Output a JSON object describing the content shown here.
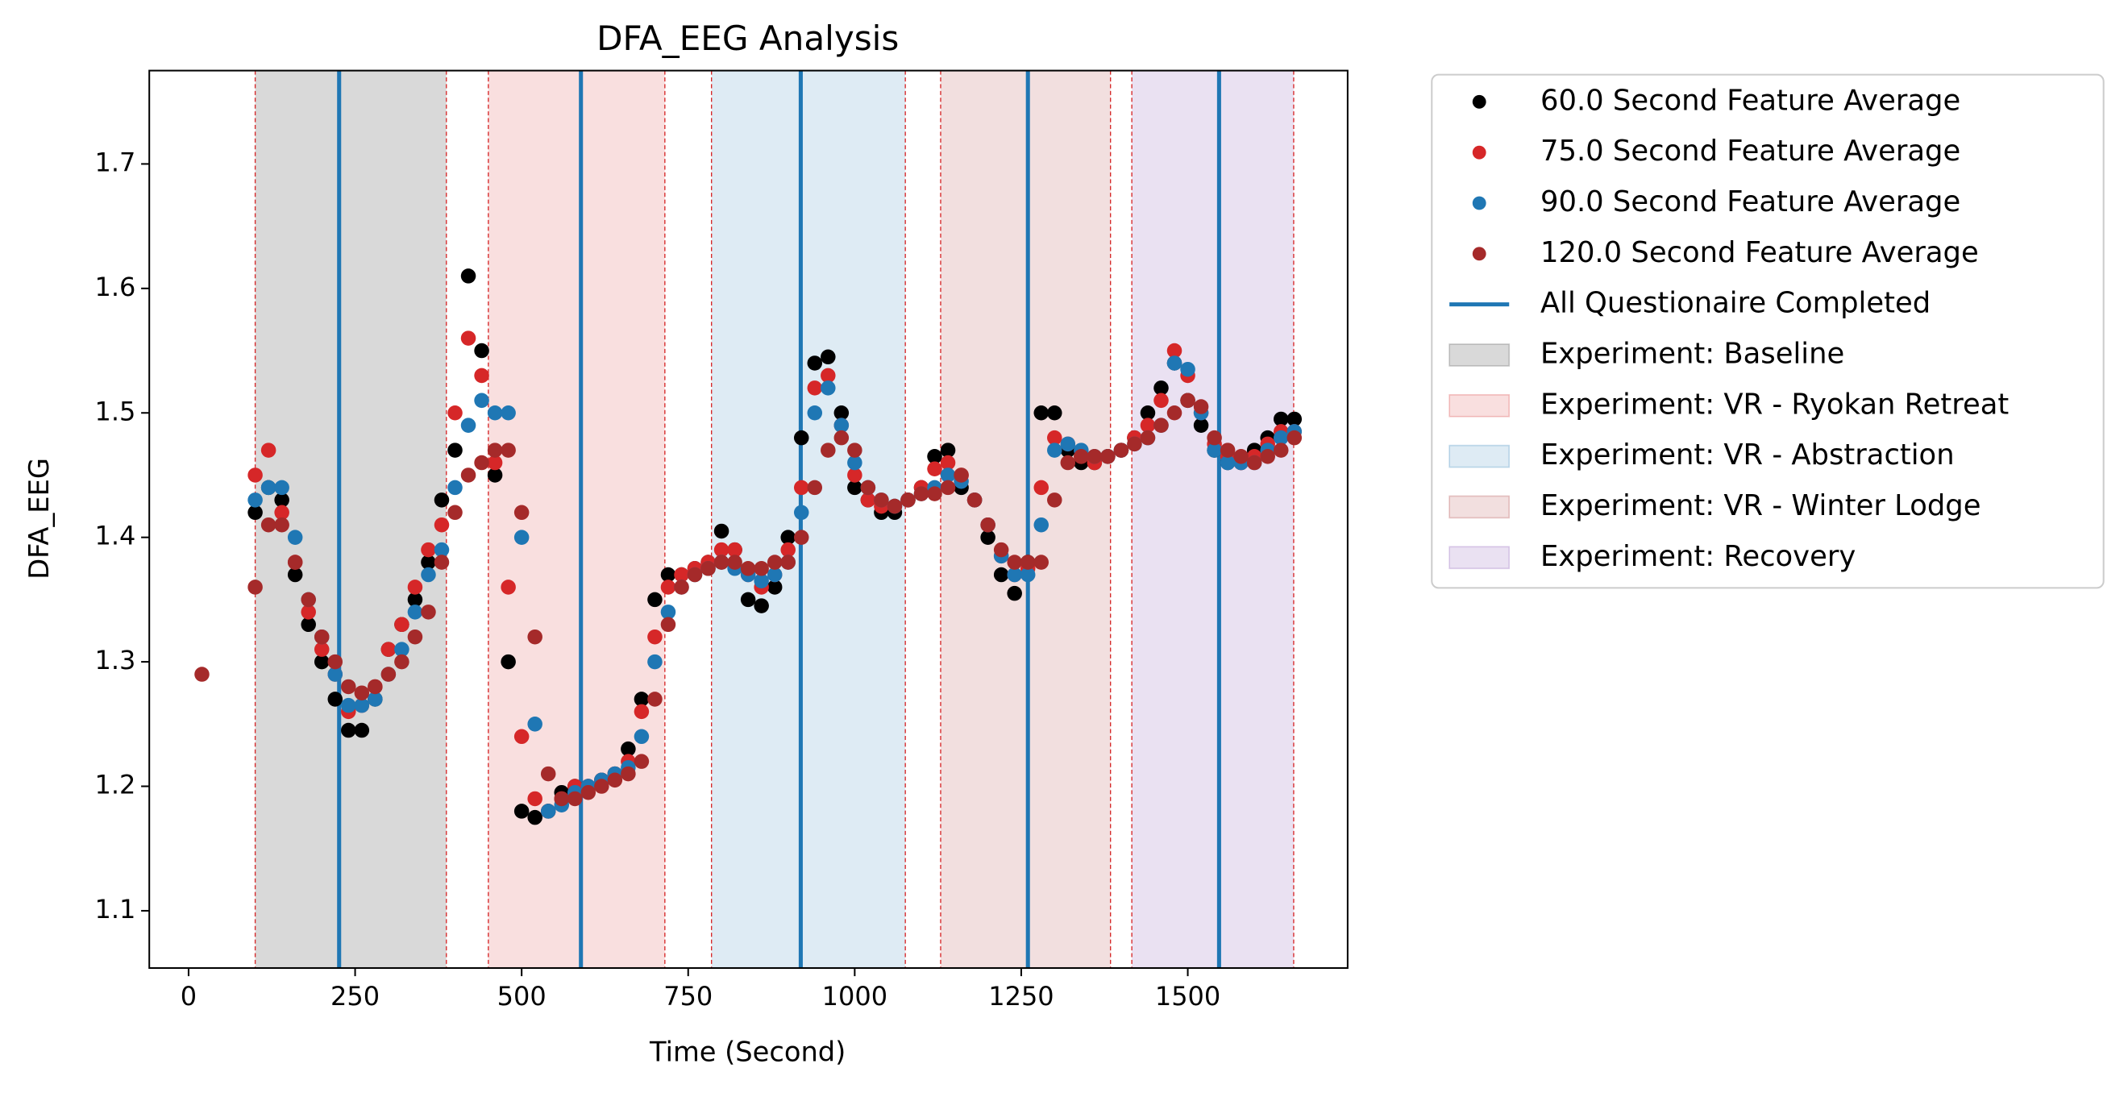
{
  "chart_data": {
    "type": "scatter",
    "title": "DFA_EEG Analysis",
    "x_label": "Time (Second)",
    "y_label": "DFA_EEG",
    "xlim": [
      -59,
      1740
    ],
    "ylim": [
      1.054,
      1.775
    ],
    "xticks": [
      0,
      250,
      500,
      750,
      1000,
      1250,
      1500
    ],
    "yticks": [
      1.1,
      1.2,
      1.3,
      1.4,
      1.5,
      1.6,
      1.7
    ],
    "x": [
      20,
      40,
      60,
      80,
      100,
      120,
      140,
      160,
      180,
      200,
      220,
      240,
      260,
      280,
      300,
      320,
      340,
      360,
      380,
      400,
      420,
      440,
      460,
      480,
      500,
      520,
      540,
      560,
      580,
      600,
      620,
      640,
      660,
      680,
      700,
      720,
      740,
      760,
      780,
      800,
      820,
      840,
      860,
      880,
      900,
      920,
      940,
      960,
      980,
      1000,
      1020,
      1040,
      1060,
      1080,
      1100,
      1120,
      1140,
      1160,
      1180,
      1200,
      1220,
      1240,
      1260,
      1280,
      1300,
      1320,
      1340,
      1360,
      1380,
      1400,
      1420,
      1440,
      1460,
      1480,
      1500,
      1520,
      1540,
      1560,
      1580,
      1600,
      1620,
      1640,
      1660
    ],
    "series": [
      {
        "name": "60.0 Second Feature Average",
        "color": "#000000",
        "values": [
          null,
          null,
          null,
          null,
          1.42,
          1.44,
          1.43,
          1.37,
          1.33,
          1.3,
          1.27,
          1.245,
          1.245,
          1.27,
          1.31,
          1.33,
          1.35,
          1.38,
          1.43,
          1.47,
          1.61,
          1.55,
          1.45,
          1.3,
          1.18,
          1.175,
          1.18,
          1.195,
          1.2,
          1.2,
          1.205,
          1.21,
          1.23,
          1.27,
          1.35,
          1.37,
          1.37,
          1.375,
          1.38,
          1.405,
          1.39,
          1.35,
          1.345,
          1.36,
          1.4,
          1.48,
          1.54,
          1.545,
          1.5,
          1.44,
          1.43,
          1.42,
          1.42,
          1.43,
          1.44,
          1.465,
          1.47,
          1.44,
          1.43,
          1.4,
          1.37,
          1.355,
          1.38,
          1.5,
          1.5,
          1.47,
          1.46,
          1.46,
          1.465,
          1.47,
          1.48,
          1.5,
          1.52,
          1.54,
          1.51,
          1.49,
          1.47,
          1.46,
          1.46,
          1.47,
          1.48,
          1.495,
          1.495
        ]
      },
      {
        "name": "75.0 Second Feature Average",
        "color": "#d62728",
        "values": [
          null,
          null,
          null,
          null,
          1.45,
          1.47,
          1.42,
          1.38,
          1.34,
          1.31,
          1.29,
          1.26,
          1.265,
          1.28,
          1.31,
          1.33,
          1.36,
          1.39,
          1.41,
          1.5,
          1.56,
          1.53,
          1.46,
          1.36,
          1.24,
          1.19,
          1.18,
          1.19,
          1.2,
          1.2,
          1.205,
          1.21,
          1.22,
          1.26,
          1.32,
          1.36,
          1.37,
          1.375,
          1.38,
          1.39,
          1.39,
          1.37,
          1.36,
          1.37,
          1.39,
          1.44,
          1.52,
          1.53,
          1.49,
          1.45,
          1.43,
          1.425,
          1.425,
          1.43,
          1.44,
          1.455,
          1.46,
          1.45,
          1.43,
          1.41,
          1.385,
          1.37,
          1.375,
          1.44,
          1.48,
          1.475,
          1.465,
          1.46,
          1.465,
          1.47,
          1.48,
          1.49,
          1.51,
          1.55,
          1.53,
          1.5,
          1.475,
          1.465,
          1.46,
          1.465,
          1.475,
          1.485,
          1.485
        ]
      },
      {
        "name": "90.0 Second Feature Average",
        "color": "#1f77b4",
        "values": [
          null,
          null,
          null,
          null,
          1.43,
          1.44,
          1.44,
          1.4,
          1.35,
          1.32,
          1.29,
          1.265,
          1.265,
          1.27,
          1.29,
          1.31,
          1.34,
          1.37,
          1.39,
          1.44,
          1.49,
          1.51,
          1.5,
          1.5,
          1.4,
          1.25,
          1.18,
          1.185,
          1.195,
          1.2,
          1.205,
          1.21,
          1.215,
          1.24,
          1.3,
          1.34,
          1.36,
          1.37,
          1.375,
          1.38,
          1.375,
          1.37,
          1.365,
          1.37,
          1.38,
          1.42,
          1.5,
          1.52,
          1.49,
          1.46,
          1.44,
          1.43,
          1.425,
          1.43,
          1.435,
          1.44,
          1.45,
          1.445,
          1.43,
          1.41,
          1.385,
          1.37,
          1.37,
          1.41,
          1.47,
          1.475,
          1.47,
          1.465,
          1.465,
          1.47,
          1.475,
          1.48,
          1.49,
          1.54,
          1.535,
          1.5,
          1.47,
          1.46,
          1.46,
          1.46,
          1.47,
          1.48,
          1.485
        ]
      },
      {
        "name": "120.0 Second Feature Average",
        "color": "#a52a2a",
        "values": [
          1.29,
          null,
          null,
          null,
          1.36,
          1.41,
          1.41,
          1.38,
          1.35,
          1.32,
          1.3,
          1.28,
          1.275,
          1.28,
          1.29,
          1.3,
          1.32,
          1.34,
          1.38,
          1.42,
          1.45,
          1.46,
          1.47,
          1.47,
          1.42,
          1.32,
          1.21,
          1.19,
          1.19,
          1.195,
          1.2,
          1.205,
          1.21,
          1.22,
          1.27,
          1.33,
          1.36,
          1.37,
          1.375,
          1.38,
          1.38,
          1.375,
          1.375,
          1.38,
          1.38,
          1.4,
          1.44,
          1.47,
          1.48,
          1.47,
          1.44,
          1.43,
          1.425,
          1.43,
          1.435,
          1.435,
          1.44,
          1.45,
          1.43,
          1.41,
          1.39,
          1.38,
          1.38,
          1.38,
          1.43,
          1.46,
          1.465,
          1.465,
          1.465,
          1.47,
          1.475,
          1.48,
          1.49,
          1.5,
          1.51,
          1.505,
          1.48,
          1.47,
          1.465,
          1.46,
          1.465,
          1.47,
          1.48
        ]
      }
    ],
    "vlines": {
      "name": "All Questionaire Completed",
      "color": "#1f77b4",
      "x": [
        226,
        589,
        919,
        1260,
        1547
      ]
    },
    "spans": [
      {
        "name": "Experiment: Baseline",
        "start": 100,
        "end": 387,
        "color": "#808080",
        "opacity": 0.3
      },
      {
        "name": "Experiment: VR - Ryokan Retreat",
        "start": 450,
        "end": 715,
        "color": "#d62728",
        "opacity": 0.15
      },
      {
        "name": "Experiment: VR - Abstraction",
        "start": 785,
        "end": 1076,
        "color": "#1f77b4",
        "opacity": 0.15
      },
      {
        "name": "Experiment: VR - Winter Lodge",
        "start": 1129,
        "end": 1384,
        "color": "#a52a2a",
        "opacity": 0.15
      },
      {
        "name": "Experiment: Recovery",
        "start": 1416,
        "end": 1659,
        "color": "#9467bd",
        "opacity": 0.2
      }
    ],
    "span_edge_color": "#d62728"
  }
}
